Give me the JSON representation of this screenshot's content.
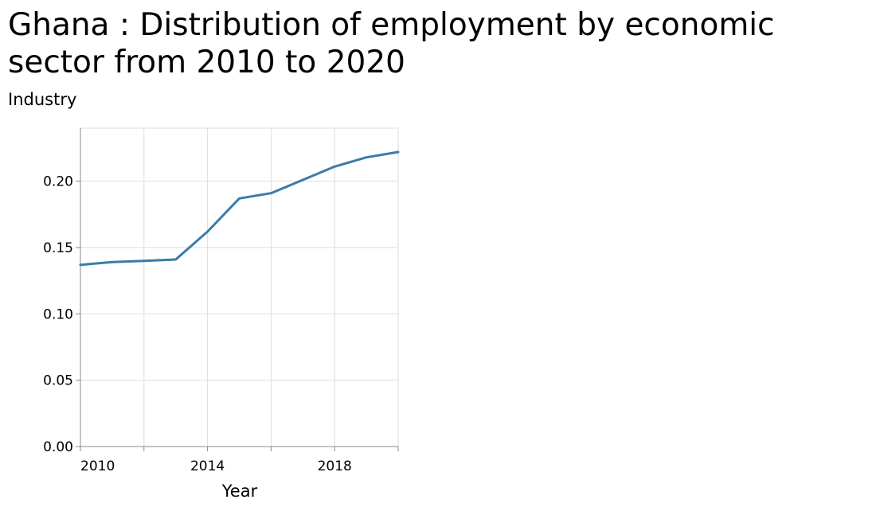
{
  "chart_data": {
    "type": "line",
    "title": "Ghana : Distribution of employment by economic sector from 2010 to 2020",
    "xlabel": "Year",
    "ylabel": "Industry",
    "x": [
      2010,
      2011,
      2012,
      2013,
      2014,
      2015,
      2016,
      2017,
      2018,
      2019,
      2020
    ],
    "series": [
      {
        "values": [
          0.137,
          0.139,
          0.14,
          0.141,
          0.162,
          0.187,
          0.191,
          0.201,
          0.211,
          0.218,
          0.222
        ]
      }
    ],
    "xlim": [
      2010,
      2020
    ],
    "ylim": [
      0,
      0.24
    ],
    "xticks": [
      2010,
      2012,
      2014,
      2016,
      2018,
      2020
    ],
    "xtick_labels": [
      "2010",
      "2014",
      "2018"
    ],
    "xtick_label_values": [
      2010,
      2014,
      2018
    ],
    "yticks": [
      0,
      0.05,
      0.1,
      0.15,
      0.2
    ],
    "ytick_labels": [
      "0.00",
      "0.05",
      "0.10",
      "0.15",
      "0.20"
    ],
    "grid": true,
    "colors": {
      "line": "#3a7bab",
      "grid": "#dddddd",
      "axis": "#888888"
    }
  }
}
